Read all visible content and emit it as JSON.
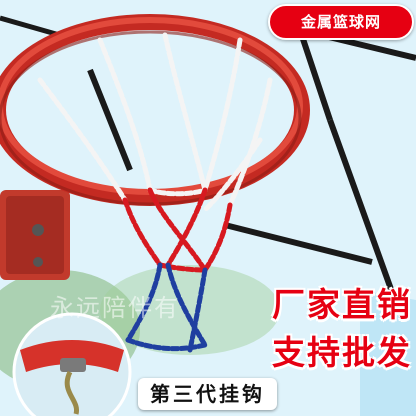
{
  "badge": {
    "text": "金属篮球网"
  },
  "promo": {
    "line1": "厂家直销",
    "line2": "支持批发"
  },
  "watermark": {
    "text": "永远陪伴有"
  },
  "caption": {
    "text": "第三代挂钩"
  },
  "colors": {
    "rim": "#d9342b",
    "chain_white": "#f4f4f4",
    "chain_red": "#d71920",
    "chain_blue": "#1f3fa0",
    "accent": "#e60012"
  }
}
